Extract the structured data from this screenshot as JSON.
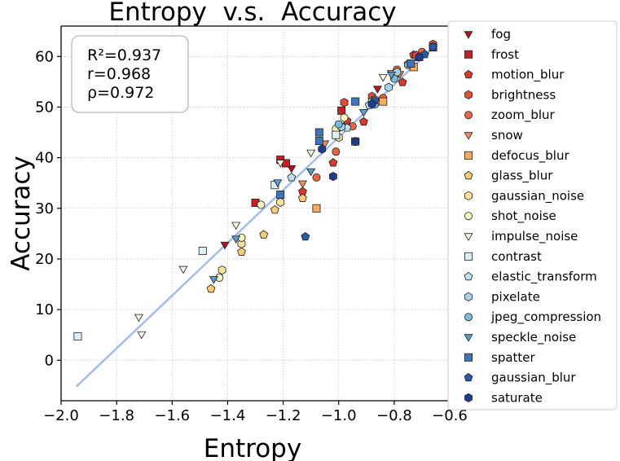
{
  "chart_data": {
    "type": "scatter",
    "title": "Entropy  v.s.  Accuracy",
    "xlabel": "Entropy",
    "ylabel": "Accuracy",
    "xlim": [
      -2.0,
      -0.6
    ],
    "ylim": [
      -8,
      66
    ],
    "xticks": [
      -2.0,
      -1.8,
      -1.6,
      -1.4,
      -1.2,
      -1.0,
      -0.8,
      -0.6
    ],
    "xtick_labels": [
      "−2.0",
      "−1.8",
      "−1.6",
      "−1.4",
      "−1.2",
      "−1.0",
      "−0.8",
      "−0.6"
    ],
    "yticks": [
      0,
      10,
      20,
      30,
      40,
      50,
      60
    ],
    "ytick_labels": [
      "0",
      "10",
      "20",
      "30",
      "40",
      "50",
      "60"
    ],
    "grid": true,
    "legend_position": "outside-right",
    "stats": [
      "R²=0.937",
      "r=0.968",
      "ρ=0.972"
    ],
    "fit_line": {
      "x": [
        -1.945,
        -0.655
      ],
      "y": [
        -5.2,
        62.0
      ],
      "color": "#a4bcec"
    },
    "series": [
      {
        "name": "fog",
        "marker": "triangle-down",
        "color": "#b0151f",
        "points": [
          [
            -1.41,
            22.8
          ],
          [
            -1.17,
            37.9
          ],
          [
            -0.99,
            46.3
          ],
          [
            -0.86,
            53.6
          ]
        ]
      },
      {
        "name": "frost",
        "marker": "square",
        "color": "#c42025",
        "points": [
          [
            -1.3,
            31.1
          ],
          [
            -1.21,
            39.6
          ],
          [
            -1.19,
            38.9
          ],
          [
            -0.99,
            49.3
          ],
          [
            -0.71,
            59.9
          ]
        ]
      },
      {
        "name": "motion_blur",
        "marker": "pentagon",
        "color": "#d53a2a",
        "points": [
          [
            -1.13,
            33.3
          ],
          [
            -1.02,
            39.0
          ],
          [
            -0.97,
            47.3
          ],
          [
            -0.91,
            47.1
          ],
          [
            -0.77,
            54.9
          ],
          [
            -0.73,
            60.3
          ]
        ]
      },
      {
        "name": "brightness",
        "marker": "hexagon",
        "color": "#e04f32",
        "points": [
          [
            -0.98,
            50.9
          ],
          [
            -0.88,
            52.1
          ],
          [
            -0.79,
            56.6
          ],
          [
            -0.72,
            60.2
          ],
          [
            -0.66,
            62.4
          ]
        ]
      },
      {
        "name": "zoom_blur",
        "marker": "circle",
        "color": "#ec6540",
        "points": [
          [
            -1.08,
            36.1
          ],
          [
            -1.01,
            41.2
          ],
          [
            -0.95,
            46.2
          ],
          [
            -0.84,
            51.8
          ],
          [
            -0.79,
            57.4
          ],
          [
            -0.7,
            60.9
          ]
        ]
      },
      {
        "name": "snow",
        "marker": "triangle-down",
        "color": "#f38c56",
        "points": [
          [
            -1.13,
            34.9
          ],
          [
            -1.05,
            42.8
          ],
          [
            -1.0,
            45.6
          ],
          [
            -0.81,
            56.7
          ],
          [
            -0.78,
            56.5
          ]
        ]
      },
      {
        "name": "defocus_blur",
        "marker": "square",
        "color": "#f5aa62",
        "points": [
          [
            -1.08,
            30.0
          ],
          [
            -0.94,
            43.2
          ],
          [
            -0.84,
            51.1
          ],
          [
            -0.73,
            57.9
          ]
        ]
      },
      {
        "name": "glass_blur",
        "marker": "pentagon",
        "color": "#f7ca7a",
        "points": [
          [
            -1.46,
            14.1
          ],
          [
            -1.35,
            21.4
          ],
          [
            -1.27,
            24.8
          ],
          [
            -1.23,
            29.7
          ],
          [
            -1.13,
            32.0
          ]
        ]
      },
      {
        "name": "gaussian_noise",
        "marker": "hexagon",
        "color": "#fbe39e",
        "points": [
          [
            -1.42,
            17.8
          ],
          [
            -1.35,
            23.0
          ],
          [
            -1.21,
            31.2
          ],
          [
            -1.0,
            44.0
          ],
          [
            -0.87,
            51.5
          ]
        ]
      },
      {
        "name": "shot_noise",
        "marker": "circle",
        "color": "#fdf5c0",
        "points": [
          [
            -1.43,
            16.3
          ],
          [
            -1.35,
            24.2
          ],
          [
            -1.28,
            30.7
          ],
          [
            -1.01,
            45.7
          ],
          [
            -0.98,
            47.9
          ]
        ]
      },
      {
        "name": "impulse_noise",
        "marker": "triangle-down",
        "color": "#f2f6e2",
        "points": [
          [
            -1.72,
            8.5
          ],
          [
            -1.71,
            5.1
          ],
          [
            -1.56,
            18.0
          ],
          [
            -1.37,
            26.7
          ],
          [
            -1.21,
            39.0
          ],
          [
            -1.1,
            41.0
          ],
          [
            -0.84,
            55.9
          ]
        ]
      },
      {
        "name": "contrast",
        "marker": "square",
        "color": "#dceff4",
        "points": [
          [
            -1.94,
            4.7
          ],
          [
            -1.49,
            21.6
          ],
          [
            -1.23,
            34.6
          ],
          [
            -1.01,
            44.5
          ]
        ]
      },
      {
        "name": "elastic_transform",
        "marker": "pentagon",
        "color": "#bcdfeb",
        "points": [
          [
            -1.17,
            36.1
          ],
          [
            -0.97,
            45.9
          ],
          [
            -0.89,
            50.4
          ],
          [
            -0.75,
            58.5
          ]
        ]
      },
      {
        "name": "pixelate",
        "marker": "hexagon",
        "color": "#a3d3e6",
        "points": [
          [
            -0.99,
            46.1
          ],
          [
            -0.88,
            51.1
          ],
          [
            -0.82,
            53.9
          ],
          [
            -0.79,
            56.9
          ]
        ]
      },
      {
        "name": "jpeg_compression",
        "marker": "circle",
        "color": "#7bbbd9",
        "points": [
          [
            -1.0,
            46.6
          ],
          [
            -0.94,
            43.2
          ],
          [
            -0.87,
            50.5
          ],
          [
            -0.8,
            55.6
          ],
          [
            -0.75,
            58.3
          ]
        ]
      },
      {
        "name": "speckle_noise",
        "marker": "triangle-down",
        "color": "#5a9ccc",
        "points": [
          [
            -1.45,
            16.0
          ],
          [
            -1.37,
            24.0
          ],
          [
            -1.22,
            35.1
          ],
          [
            -1.1,
            37.3
          ],
          [
            -0.91,
            49.0
          ],
          [
            -0.81,
            56.4
          ]
        ]
      },
      {
        "name": "spatter",
        "marker": "square",
        "color": "#3f75b8",
        "points": [
          [
            -1.21,
            32.7
          ],
          [
            -1.07,
            45.0
          ],
          [
            -1.07,
            43.3
          ],
          [
            -0.94,
            51.1
          ],
          [
            -0.74,
            58.6
          ],
          [
            -0.66,
            61.8
          ]
        ]
      },
      {
        "name": "gaussian_blur",
        "marker": "pentagon",
        "color": "#2a5aa6",
        "points": [
          [
            -1.12,
            24.4
          ],
          [
            -0.87,
            51.3
          ],
          [
            -0.69,
            60.4
          ],
          [
            -0.66,
            61.9
          ]
        ]
      },
      {
        "name": "saturate",
        "marker": "hexagon",
        "color": "#223c8c",
        "points": [
          [
            -1.06,
            41.7
          ],
          [
            -1.02,
            36.3
          ],
          [
            -0.94,
            43.2
          ],
          [
            -0.88,
            50.6
          ],
          [
            -0.71,
            59.9
          ]
        ]
      }
    ]
  }
}
